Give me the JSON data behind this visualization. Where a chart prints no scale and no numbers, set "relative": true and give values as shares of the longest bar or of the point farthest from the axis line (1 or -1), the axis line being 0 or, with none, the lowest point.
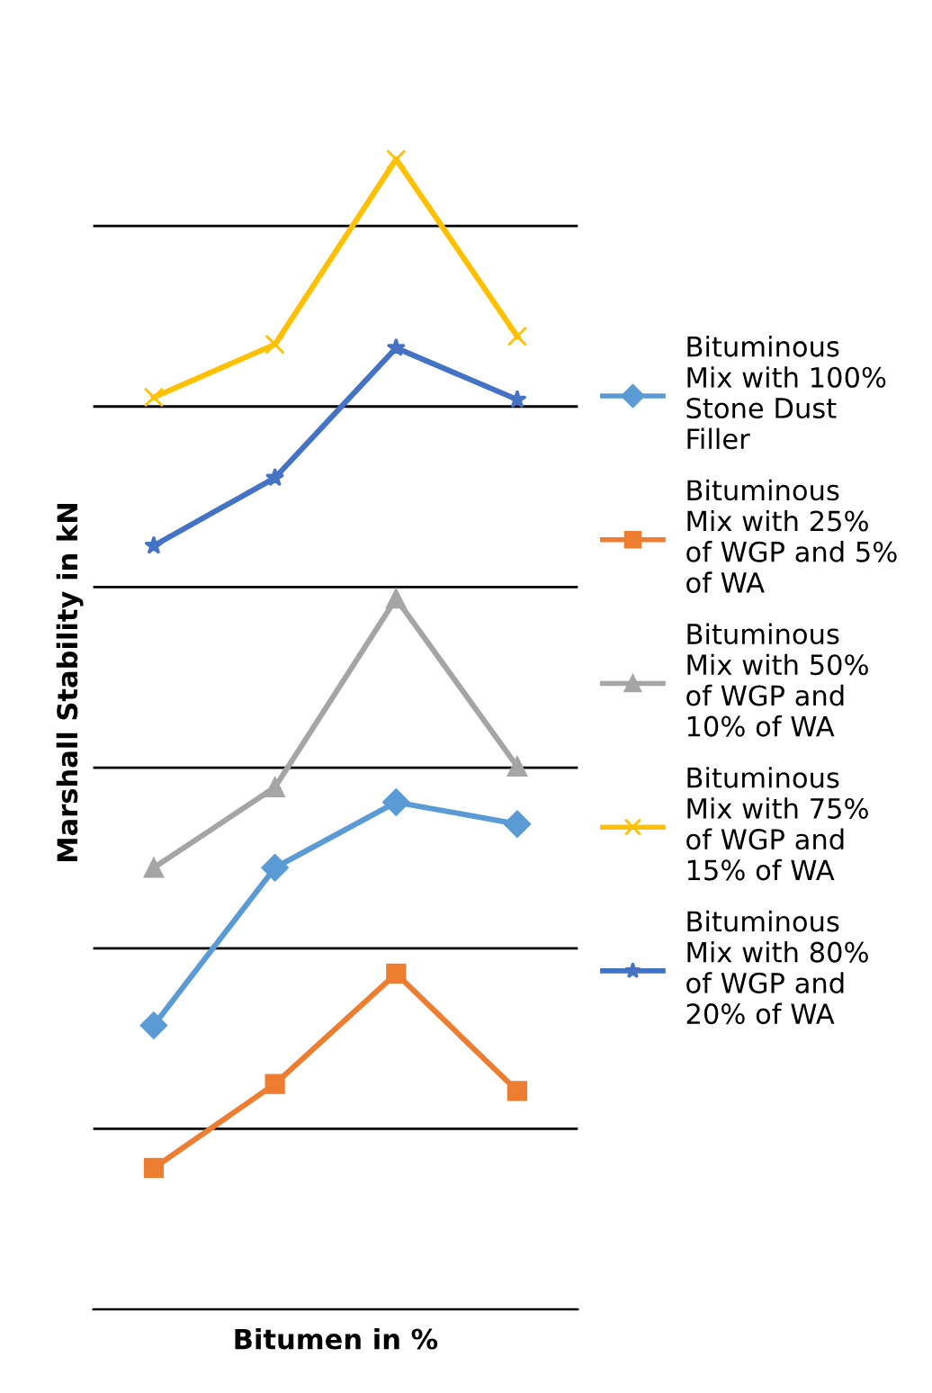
{
  "chart_data": {
    "type": "line",
    "xlabel": "Bitumen in %",
    "ylabel": "Marshall Stability in kN",
    "relative": true,
    "grid": "y",
    "legend": "right",
    "categories": [
      null,
      null,
      null,
      null
    ],
    "series": [
      {
        "name": "Bituminous Mix with 100% Stone Dust Filler",
        "color": "#5b9bd5",
        "marker": "diamond",
        "values": [
          0.247,
          0.384,
          0.441,
          0.422
        ]
      },
      {
        "name": "Bituminous Mix with 25% of WGP and 5% of WA",
        "color": "#ed7d31",
        "marker": "square",
        "values": [
          0.123,
          0.196,
          0.292,
          0.19
        ]
      },
      {
        "name": "Bituminous Mix with 50% of WGP and 10% of WA",
        "color": "#a5a5a5",
        "marker": "triangle",
        "values": [
          0.384,
          0.454,
          0.618,
          0.472
        ]
      },
      {
        "name": "Bituminous Mix with 75% of WGP and 15% of WA",
        "color": "#ffc000",
        "marker": "cross",
        "values": [
          0.793,
          0.839,
          1,
          0.846
        ]
      },
      {
        "name": "Bituminous Mix with 80% of WGP and 20% of WA",
        "color": "#4472c4",
        "marker": "star",
        "values": [
          0.664,
          0.723,
          0.836,
          0.791
        ]
      }
    ]
  }
}
